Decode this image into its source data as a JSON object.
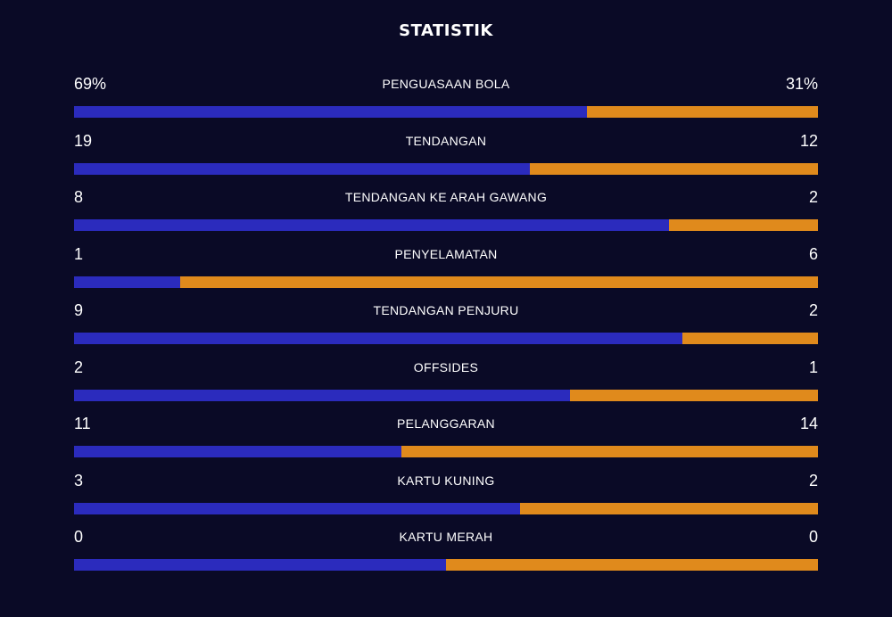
{
  "title": "STATISTIK",
  "colors": {
    "background": "#0a0a26",
    "home": "#2b2bbd",
    "away": "#e08a1c"
  },
  "stats": [
    {
      "label": "PENGUASAAN BOLA",
      "home": "69%",
      "away": "31%",
      "home_share": 0.69
    },
    {
      "label": "TENDANGAN",
      "home": "19",
      "away": "12",
      "home_share": 0.613
    },
    {
      "label": "TENDANGAN KE ARAH GAWANG",
      "home": "8",
      "away": "2",
      "home_share": 0.8
    },
    {
      "label": "PENYELAMATAN",
      "home": "1",
      "away": "6",
      "home_share": 0.143
    },
    {
      "label": "TENDANGAN PENJURU",
      "home": "9",
      "away": "2",
      "home_share": 0.818
    },
    {
      "label": "OFFSIDES",
      "home": "2",
      "away": "1",
      "home_share": 0.667
    },
    {
      "label": "PELANGGARAN",
      "home": "11",
      "away": "14",
      "home_share": 0.44
    },
    {
      "label": "KARTU KUNING",
      "home": "3",
      "away": "2",
      "home_share": 0.6
    },
    {
      "label": "KARTU MERAH",
      "home": "0",
      "away": "0",
      "home_share": 0.5
    }
  ]
}
